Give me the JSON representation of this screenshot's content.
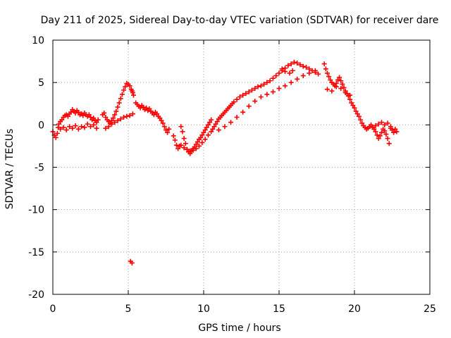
{
  "chart_data": {
    "type": "scatter",
    "title": "Day 211 of 2025, Sidereal Day-to-day VTEC variation (SDTVAR) for receiver dare",
    "xlabel": "GPS time / hours",
    "ylabel": "SDTVAR / TECUs",
    "xlim": [
      0,
      25
    ],
    "ylim": [
      -20,
      10
    ],
    "xticks": [
      0,
      5,
      10,
      15,
      20,
      25
    ],
    "yticks": [
      -20,
      -15,
      -10,
      -5,
      0,
      5,
      10
    ],
    "xtick_labels": [
      "0",
      "5",
      "10",
      "15",
      "20",
      "25"
    ],
    "ytick_labels": [
      "-20",
      "-15",
      "-10",
      "-5",
      "0",
      "5",
      "10"
    ],
    "grid": true,
    "marker": "plus",
    "series": [
      {
        "name": "SDTVAR",
        "color": "#ff0000",
        "x": [
          0.0,
          0.1,
          0.2,
          0.3,
          0.35,
          0.4,
          0.5,
          0.6,
          0.7,
          0.8,
          0.9,
          1.0,
          1.1,
          1.2,
          1.3,
          1.4,
          1.5,
          1.6,
          1.7,
          1.8,
          1.9,
          2.0,
          2.1,
          2.2,
          2.3,
          2.4,
          2.5,
          2.6,
          2.7,
          2.8,
          2.9,
          3.0,
          0.5,
          0.7,
          0.9,
          1.1,
          1.3,
          1.5,
          1.7,
          1.9,
          2.1,
          2.3,
          2.5,
          2.7,
          2.9,
          3.3,
          3.4,
          3.5,
          3.6,
          3.7,
          3.8,
          3.9,
          4.0,
          4.1,
          4.2,
          4.3,
          4.4,
          4.5,
          4.6,
          4.7,
          4.8,
          4.9,
          5.0,
          5.1,
          5.2,
          5.25,
          5.3,
          5.35,
          3.5,
          3.7,
          3.9,
          4.1,
          4.3,
          4.5,
          4.7,
          4.9,
          5.1,
          5.3,
          5.5,
          5.6,
          5.7,
          5.8,
          5.9,
          6.0,
          6.1,
          6.2,
          6.3,
          6.4,
          6.5,
          6.6,
          6.7,
          6.8,
          6.9,
          7.0,
          7.1,
          7.2,
          7.3,
          7.4,
          7.5,
          7.6,
          7.7,
          8.0,
          8.1,
          8.2,
          8.3,
          8.4,
          8.5,
          8.6,
          8.7,
          8.8,
          8.9,
          9.0,
          9.1,
          9.2,
          9.3,
          9.4,
          9.5,
          9.6,
          9.7,
          9.8,
          9.9,
          10.0,
          10.1,
          10.2,
          10.3,
          10.4,
          10.5,
          8.5,
          8.7,
          8.9,
          9.1,
          9.3,
          9.5,
          9.7,
          9.9,
          10.1,
          10.3,
          10.5,
          10.6,
          10.7,
          10.8,
          10.9,
          11.0,
          11.1,
          11.2,
          11.3,
          11.4,
          11.5,
          11.6,
          11.7,
          11.8,
          11.9,
          12.0,
          12.2,
          12.4,
          12.6,
          12.8,
          13.0,
          13.2,
          13.4,
          13.6,
          13.8,
          14.0,
          14.2,
          14.4,
          14.6,
          14.8,
          15.0,
          15.2,
          15.4,
          15.6,
          15.8,
          16.0,
          16.2,
          16.4,
          16.6,
          16.8,
          17.0,
          17.2,
          17.4,
          17.6,
          11.0,
          11.4,
          11.8,
          12.2,
          12.6,
          13.0,
          13.4,
          13.8,
          14.2,
          14.6,
          15.0,
          15.4,
          15.8,
          16.2,
          16.6,
          17.0,
          17.4,
          15.2,
          15.4,
          15.7,
          15.9,
          18.0,
          18.1,
          18.2,
          18.3,
          18.4,
          18.5,
          18.6,
          18.7,
          18.8,
          18.9,
          19.0,
          19.1,
          19.2,
          19.3,
          19.4,
          19.5,
          19.6,
          19.7,
          19.8,
          19.9,
          20.0,
          20.1,
          20.2,
          20.3,
          20.4,
          20.5,
          20.6,
          20.7,
          20.8,
          20.9,
          21.0,
          21.1,
          21.2,
          18.2,
          18.5,
          18.8,
          19.1,
          19.4,
          19.7,
          21.3,
          21.4,
          21.5,
          21.6,
          21.7,
          21.8,
          21.9,
          22.0,
          22.1,
          22.2,
          22.3,
          22.4,
          22.5,
          22.6,
          22.7,
          22.8,
          21.4,
          21.6,
          21.8,
          22.0,
          22.2,
          22.4,
          5.15,
          5.25
        ],
        "y": [
          -0.8,
          -1.2,
          -1.5,
          -1.0,
          -0.3,
          0.1,
          0.4,
          0.6,
          0.9,
          1.1,
          1.2,
          1.0,
          1.3,
          1.5,
          1.8,
          1.6,
          1.4,
          1.7,
          1.5,
          1.2,
          1.3,
          1.1,
          1.4,
          1.2,
          1.0,
          1.2,
          0.9,
          0.6,
          0.8,
          0.5,
          0.3,
          0.6,
          -0.5,
          -0.3,
          -0.6,
          -0.2,
          -0.4,
          -0.1,
          -0.5,
          -0.2,
          -0.3,
          0.1,
          -0.2,
          0.0,
          -0.4,
          1.2,
          1.4,
          0.9,
          0.6,
          0.4,
          0.2,
          0.5,
          0.8,
          1.2,
          1.6,
          2.1,
          2.6,
          3.1,
          3.6,
          4.1,
          4.5,
          4.9,
          4.8,
          4.6,
          4.2,
          4.0,
          3.8,
          3.5,
          -0.4,
          -0.2,
          0.1,
          0.3,
          0.5,
          0.7,
          0.9,
          1.0,
          1.1,
          1.3,
          2.6,
          2.4,
          2.2,
          2.0,
          2.3,
          2.1,
          1.8,
          2.0,
          1.7,
          1.9,
          1.6,
          1.4,
          1.2,
          1.5,
          1.3,
          1.0,
          0.8,
          0.5,
          0.2,
          -0.2,
          -0.6,
          -0.9,
          -0.5,
          -1.3,
          -1.8,
          -2.4,
          -2.8,
          -2.5,
          -0.2,
          -0.8,
          -1.6,
          -2.2,
          -2.9,
          -3.2,
          -3.4,
          -3.1,
          -2.8,
          -2.6,
          -2.3,
          -2.0,
          -1.7,
          -1.5,
          -1.2,
          -0.9,
          -0.6,
          -0.3,
          0.0,
          0.3,
          0.6,
          -2.4,
          -2.7,
          -2.9,
          -3.1,
          -3.0,
          -2.8,
          -2.5,
          -2.1,
          -1.7,
          -1.2,
          -0.8,
          -0.5,
          -0.2,
          0.1,
          0.4,
          0.7,
          0.9,
          1.1,
          1.3,
          1.5,
          1.7,
          1.9,
          2.1,
          2.3,
          2.5,
          2.7,
          3.0,
          3.3,
          3.5,
          3.7,
          3.9,
          4.1,
          4.3,
          4.5,
          4.6,
          4.8,
          5.0,
          5.2,
          5.5,
          5.8,
          6.1,
          6.4,
          6.7,
          7.0,
          7.2,
          7.4,
          7.3,
          7.1,
          6.9,
          6.8,
          6.6,
          6.4,
          6.2,
          6.0,
          -0.6,
          -0.2,
          0.3,
          0.9,
          1.5,
          2.2,
          2.8,
          3.3,
          3.6,
          3.9,
          4.3,
          4.6,
          5.0,
          5.4,
          5.8,
          6.1,
          6.4,
          6.6,
          6.3,
          6.1,
          6.4,
          7.2,
          6.6,
          6.1,
          5.7,
          5.3,
          5.0,
          4.8,
          4.6,
          4.9,
          5.3,
          5.6,
          5.2,
          4.8,
          4.4,
          4.0,
          3.7,
          3.4,
          3.0,
          2.6,
          2.3,
          2.0,
          1.6,
          1.3,
          1.0,
          0.6,
          0.2,
          -0.1,
          -0.3,
          -0.5,
          -0.4,
          -0.2,
          0.0,
          -0.3,
          4.2,
          4.0,
          4.5,
          4.3,
          3.8,
          3.5,
          -0.5,
          -0.8,
          -1.2,
          -1.6,
          -1.3,
          -0.9,
          -0.5,
          -0.7,
          -1.1,
          -1.6,
          -2.2,
          -0.4,
          -0.6,
          -0.9,
          -0.5,
          -0.8,
          -0.1,
          0.1,
          0.3,
          0.0,
          0.2,
          -0.2,
          -16.1,
          -16.3
        ]
      }
    ]
  }
}
